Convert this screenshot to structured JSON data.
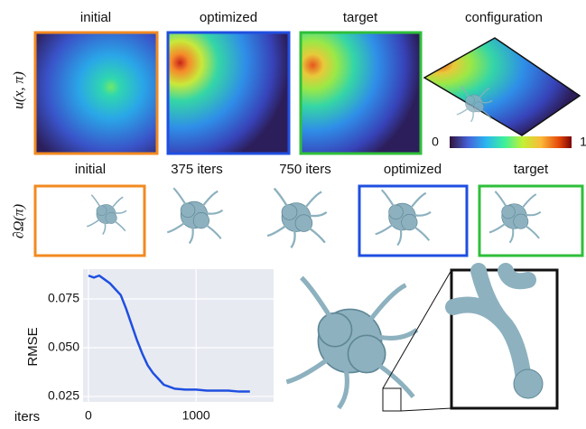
{
  "top_row": {
    "ylabel": "u(x, π)",
    "columns": [
      "initial",
      "optimized",
      "target",
      "configuration"
    ],
    "colorbar": {
      "min": 0,
      "max": 1
    }
  },
  "second_row": {
    "ylabel": "∂Ω(π)",
    "columns": [
      "initial",
      "375 iters",
      "750 iters",
      "optimized",
      "target"
    ]
  },
  "chart_data": {
    "type": "line",
    "ylabel": "RMSE",
    "xlabel": "iters",
    "x": [
      0,
      50,
      100,
      150,
      200,
      250,
      300,
      350,
      400,
      450,
      500,
      550,
      600,
      650,
      700,
      800,
      900,
      1000,
      1100,
      1200,
      1300,
      1400,
      1500
    ],
    "series": [
      {
        "color": "#1f4fe0",
        "values": [
          0.087,
          0.086,
          0.087,
          0.085,
          0.083,
          0.08,
          0.077,
          0.07,
          0.062,
          0.054,
          0.047,
          0.041,
          0.037,
          0.034,
          0.031,
          0.029,
          0.0285,
          0.0285,
          0.028,
          0.028,
          0.028,
          0.0275,
          0.0275
        ]
      }
    ],
    "xlim": [
      -50,
      1720
    ],
    "ylim": [
      0.0222,
      0.0903
    ],
    "xticks": [
      0,
      1000
    ],
    "yticks": [
      0.025,
      {
        "value": 0.05,
        "label": "0.050"
      },
      0.075
    ],
    "grid": true
  }
}
